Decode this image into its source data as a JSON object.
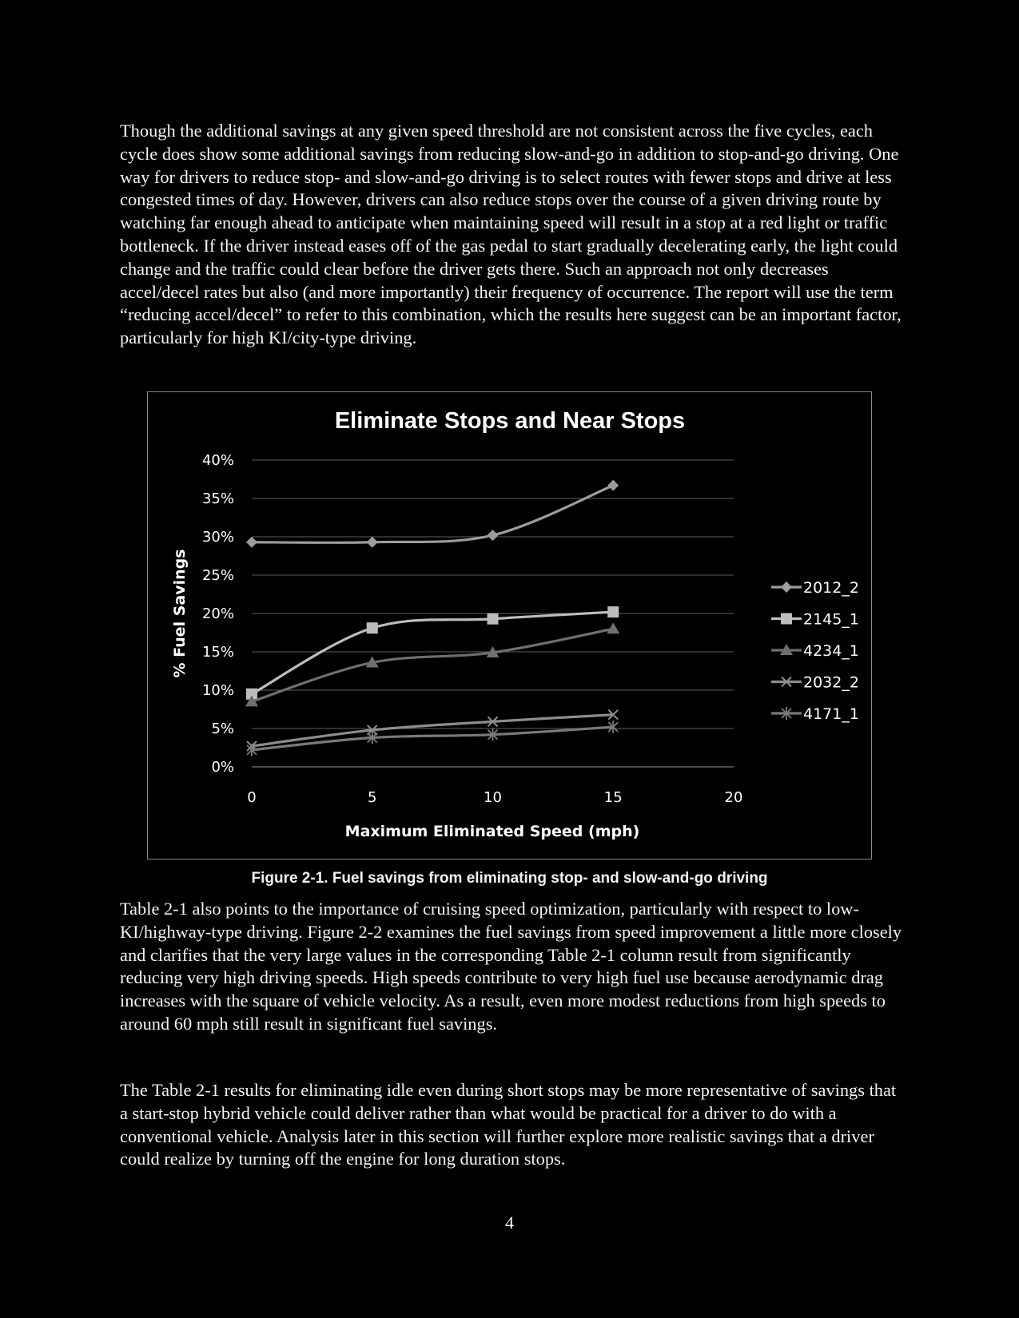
{
  "body": {
    "para1": "Though the additional savings at any given speed threshold are not consistent across the five cycles, each cycle does show some additional savings from reducing slow-and-go in addition to stop-and-go driving. One way for drivers to reduce stop- and slow-and-go driving is to select routes with fewer stops and drive at less congested times of day. However, drivers can also reduce stops over the course of a given driving route by watching far enough ahead to anticipate when maintaining speed will result in a stop at a red light or traffic bottleneck. If the driver instead eases off of the gas pedal to start gradually decelerating early, the light could change and the traffic could clear before the driver gets there. Such an approach not only decreases accel/decel rates but also (and more importantly) their frequency of occurrence. The report will use the term “reducing accel/decel” to refer to this combination, which the results here suggest can be an important factor, particularly for high KI/city-type driving.",
    "caption": "Figure 2-1. Fuel savings from eliminating stop- and slow-and-go driving",
    "para2": "Table 2-1 also points to the importance of cruising speed optimization, particularly with respect to low-KI/highway-type driving. Figure 2-2 examines the fuel savings from speed improvement a little more closely and clarifies that the very large values in the corresponding Table 2-1 column result from significantly reducing very high driving speeds. High speeds contribute to very high fuel use because aerodynamic drag increases with the square of vehicle velocity. As a result, even more modest reductions from high speeds to around 60 mph still result in significant fuel savings.",
    "para3": "The Table 2-1 results for eliminating idle even during short stops may be more representative of savings that a start-stop hybrid vehicle could deliver rather than what would be practical for a driver to do with a conventional vehicle. Analysis later in this section will further explore more realistic savings that a driver could realize by turning off the engine for long duration stops.",
    "page_number": "4"
  },
  "chart_data": {
    "type": "line",
    "title": "Eliminate Stops and Near Stops",
    "xlabel": "Maximum Eliminated Speed (mph)",
    "ylabel": "% Fuel Savings",
    "x": [
      0,
      5,
      10,
      15
    ],
    "xlim": [
      0,
      20
    ],
    "ylim": [
      0,
      0.4
    ],
    "x_ticks": [
      0,
      5,
      10,
      15,
      20
    ],
    "x_tick_labels": [
      "0",
      "5",
      "10",
      "15",
      "20"
    ],
    "y_ticks": [
      0,
      0.05,
      0.1,
      0.15,
      0.2,
      0.25,
      0.3,
      0.35,
      0.4
    ],
    "y_tick_labels": [
      "0%",
      "5%",
      "10%",
      "15%",
      "20%",
      "25%",
      "30%",
      "35%",
      "40%"
    ],
    "grid": true,
    "legend_position": "right",
    "series": [
      {
        "name": "2012_2",
        "values": [
          0.293,
          0.293,
          0.302,
          0.367
        ],
        "marker": "diamond",
        "color": "#9c9c9c"
      },
      {
        "name": "2145_1",
        "values": [
          0.095,
          0.181,
          0.193,
          0.202
        ],
        "marker": "square",
        "color": "#bdbdbd"
      },
      {
        "name": "4234_1",
        "values": [
          0.085,
          0.136,
          0.149,
          0.18
        ],
        "marker": "triangle",
        "color": "#6f6f6f"
      },
      {
        "name": "2032_2",
        "values": [
          0.027,
          0.048,
          0.059,
          0.068
        ],
        "marker": "x",
        "color": "#8d8d8d"
      },
      {
        "name": "4171_1",
        "values": [
          0.022,
          0.038,
          0.042,
          0.052
        ],
        "marker": "star",
        "color": "#7a7a7a"
      }
    ]
  }
}
